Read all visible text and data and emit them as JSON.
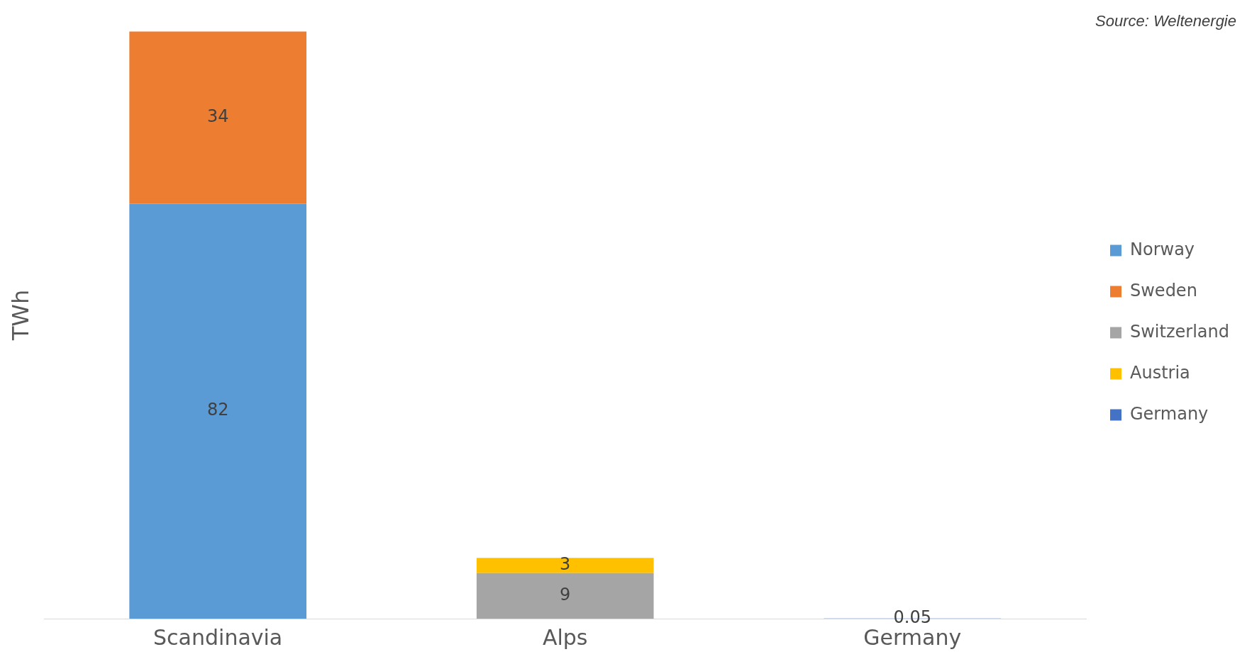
{
  "chart_data": {
    "type": "bar",
    "stacked": true,
    "ylabel": "TWh",
    "categories": [
      "Scandinavia",
      "Alps",
      "Germany"
    ],
    "series": [
      {
        "name": "Norway",
        "color": "#5b9bd5",
        "values": [
          82,
          null,
          null
        ]
      },
      {
        "name": "Sweden",
        "color": "#ed7d31",
        "values": [
          34,
          null,
          null
        ]
      },
      {
        "name": "Switzerland",
        "color": "#a5a5a5",
        "values": [
          null,
          9,
          null
        ]
      },
      {
        "name": "Austria",
        "color": "#ffc000",
        "values": [
          null,
          3,
          null
        ]
      },
      {
        "name": "Germany",
        "color": "#4472c4",
        "values": [
          null,
          null,
          0.05
        ]
      }
    ],
    "data_labels": true,
    "legend": "right",
    "grid": false,
    "annotations": [
      "Source: Weltenergie"
    ]
  }
}
